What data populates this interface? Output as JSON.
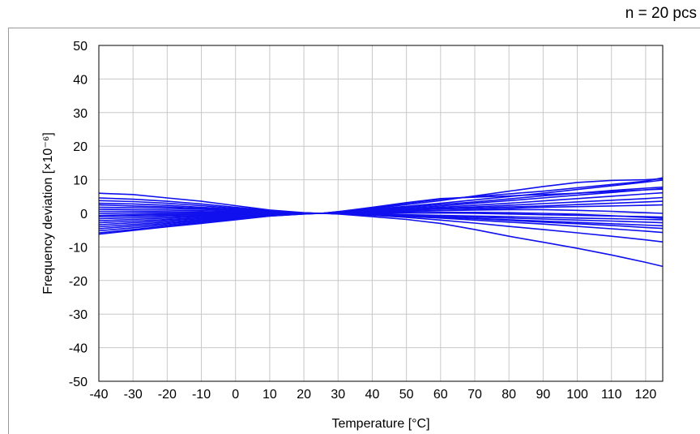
{
  "note": "n = 20 pcs",
  "chart_data": {
    "type": "line",
    "xlabel": "Temperature [°C]",
    "ylabel": "Frequency deviation [×10⁻⁶]",
    "xlim": [
      -40,
      125
    ],
    "ylim": [
      -50,
      50
    ],
    "xticks": [
      -40,
      -30,
      -20,
      -10,
      0,
      10,
      20,
      30,
      40,
      50,
      60,
      70,
      80,
      90,
      100,
      110,
      120
    ],
    "yticks": [
      -50,
      -40,
      -30,
      -20,
      -10,
      0,
      10,
      20,
      30,
      40,
      50
    ],
    "grid": true,
    "line_color": "#1010ee",
    "x": [
      -40,
      -30,
      -20,
      -10,
      0,
      10,
      20,
      25,
      30,
      40,
      50,
      60,
      70,
      80,
      90,
      100,
      110,
      120,
      125
    ],
    "series": [
      {
        "values": [
          6.0,
          5.6,
          4.6,
          3.6,
          2.3,
          1.0,
          0.2,
          0,
          -0.2,
          -1.0,
          -1.8,
          -3.0,
          -4.8,
          -6.8,
          -8.6,
          -10.4,
          -12.4,
          -14.6,
          -15.8
        ]
      },
      {
        "values": [
          4.6,
          4.2,
          3.6,
          2.8,
          1.8,
          0.8,
          0.1,
          0,
          -0.1,
          -0.6,
          -1.2,
          -2.0,
          -2.9,
          -3.9,
          -4.8,
          -5.8,
          -6.8,
          -7.9,
          -8.5
        ]
      },
      {
        "values": [
          3.8,
          3.5,
          3.0,
          2.3,
          1.5,
          0.6,
          0.1,
          0,
          -0.1,
          -0.5,
          -0.9,
          -1.4,
          -2.0,
          -2.6,
          -3.2,
          -3.9,
          -4.6,
          -5.3,
          -5.7
        ]
      },
      {
        "values": [
          3.0,
          2.8,
          2.4,
          1.8,
          1.2,
          0.5,
          0.1,
          0,
          -0.1,
          -0.4,
          -0.8,
          -1.2,
          -1.6,
          -2.1,
          -2.6,
          -3.1,
          -3.6,
          -4.2,
          -4.5
        ]
      },
      {
        "values": [
          2.5,
          2.2,
          1.9,
          1.5,
          1.0,
          0.4,
          0.1,
          0,
          -0.1,
          -0.4,
          -0.8,
          -1.1,
          -1.5,
          -1.9,
          -2.3,
          -2.7,
          -3.1,
          -3.5,
          -3.7
        ]
      },
      {
        "values": [
          1.8,
          1.7,
          1.5,
          1.2,
          0.8,
          0.3,
          0.1,
          0,
          -0.1,
          -0.3,
          -0.6,
          -0.8,
          -1.1,
          -1.4,
          -1.7,
          -2.0,
          -2.3,
          -2.6,
          -2.8
        ]
      },
      {
        "values": [
          1.2,
          1.1,
          1.0,
          0.8,
          0.5,
          0.2,
          0.0,
          0,
          0.0,
          -0.2,
          -0.4,
          -0.6,
          -0.8,
          -1.0,
          -1.2,
          -1.4,
          -1.6,
          -1.8,
          -1.9
        ]
      },
      {
        "values": [
          0.6,
          0.6,
          0.5,
          0.4,
          0.3,
          0.1,
          0.0,
          0,
          0.0,
          0.0,
          0.1,
          0.1,
          0.0,
          -0.2,
          -0.4,
          -0.6,
          -0.8,
          -1.0,
          -1.1
        ]
      },
      {
        "values": [
          0.0,
          0.1,
          0.1,
          0.1,
          0.1,
          0.0,
          0.0,
          0,
          0.0,
          0.1,
          0.2,
          0.3,
          0.3,
          0.2,
          0.0,
          -0.3,
          -0.7,
          -1.2,
          -1.5
        ]
      },
      {
        "values": [
          -0.6,
          -0.4,
          -0.3,
          -0.2,
          -0.1,
          0.0,
          0.0,
          0,
          0.0,
          0.2,
          0.5,
          0.8,
          1.0,
          1.1,
          1.1,
          0.9,
          0.6,
          0.2,
          0.0
        ]
      },
      {
        "values": [
          -1.0,
          -0.8,
          -0.6,
          -0.4,
          -0.3,
          -0.1,
          0.0,
          0,
          0.1,
          0.3,
          0.6,
          0.9,
          1.2,
          1.5,
          1.8,
          2.0,
          2.2,
          2.4,
          2.5
        ]
      },
      {
        "values": [
          -1.6,
          -1.3,
          -1.0,
          -0.7,
          -0.4,
          -0.1,
          0.0,
          0,
          0.2,
          0.5,
          0.9,
          1.3,
          1.6,
          1.9,
          2.2,
          2.6,
          3.0,
          3.4,
          3.6
        ]
      },
      {
        "values": [
          -2.2,
          -1.8,
          -1.4,
          -1.0,
          -0.6,
          -0.2,
          0.0,
          0,
          0.2,
          0.6,
          1.0,
          1.5,
          1.9,
          2.4,
          2.9,
          3.4,
          3.9,
          4.4,
          4.7
        ]
      },
      {
        "values": [
          -2.8,
          -2.3,
          -1.8,
          -1.3,
          -0.8,
          -0.3,
          0.0,
          0,
          0.2,
          0.7,
          1.2,
          1.8,
          2.4,
          3.0,
          3.7,
          4.4,
          5.1,
          5.8,
          6.1
        ]
      },
      {
        "values": [
          -3.4,
          -2.8,
          -2.2,
          -1.6,
          -1.0,
          -0.4,
          -0.1,
          0,
          0.3,
          0.8,
          1.5,
          2.2,
          3.0,
          3.8,
          4.6,
          5.4,
          6.2,
          7.0,
          7.4
        ]
      },
      {
        "values": [
          -4.0,
          -3.3,
          -2.6,
          -1.9,
          -1.2,
          -0.5,
          -0.1,
          0,
          0.3,
          1.0,
          1.8,
          2.6,
          3.4,
          4.3,
          5.2,
          6.0,
          6.8,
          7.5,
          7.8
        ]
      },
      {
        "values": [
          -4.6,
          -3.8,
          -3.0,
          -2.2,
          -1.4,
          -0.6,
          -0.1,
          0,
          0.4,
          1.2,
          2.1,
          3.0,
          4.0,
          5.0,
          6.0,
          7.1,
          8.2,
          9.3,
          9.9
        ]
      },
      {
        "values": [
          -5.2,
          -4.3,
          -3.4,
          -2.5,
          -1.6,
          -0.7,
          -0.1,
          0,
          0.4,
          1.4,
          2.6,
          3.8,
          5.2,
          6.6,
          8.0,
          9.2,
          9.8,
          10.0,
          10.3
        ]
      },
      {
        "values": [
          -5.8,
          -4.8,
          -3.8,
          -2.8,
          -1.8,
          -0.8,
          -0.2,
          0,
          0.5,
          1.6,
          3.0,
          4.2,
          5.0,
          5.8,
          6.6,
          7.6,
          8.6,
          9.6,
          10.6
        ]
      },
      {
        "values": [
          -6.2,
          -5.1,
          -4.0,
          -3.0,
          -1.9,
          -0.8,
          -0.2,
          0,
          0.5,
          1.8,
          3.2,
          4.4,
          4.8,
          5.2,
          5.6,
          6.0,
          6.5,
          7.0,
          7.2
        ]
      }
    ]
  }
}
